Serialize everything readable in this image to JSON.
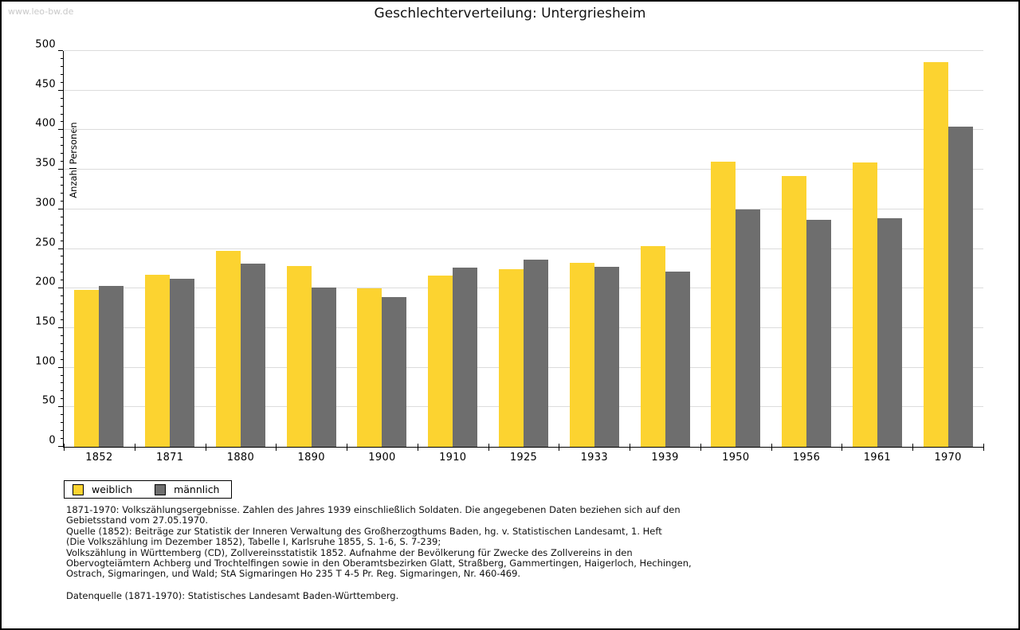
{
  "page": {
    "watermark": "www.leo-bw.de",
    "title": "Geschlechterverteilung: Untergriesheim"
  },
  "chart_data": {
    "type": "bar",
    "title": "Geschlechterverteilung: Untergriesheim",
    "xlabel": "",
    "ylabel": "Anzahl Personen",
    "ylim": [
      0,
      500
    ],
    "ytick_step": 50,
    "ytick_minor_step": 10,
    "grid": true,
    "legend_position": "bottom-left",
    "categories": [
      "1852",
      "1871",
      "1880",
      "1890",
      "1900",
      "1910",
      "1925",
      "1933",
      "1939",
      "1950",
      "1956",
      "1961",
      "1970"
    ],
    "series": [
      {
        "name": "weiblich",
        "color": "#FCD330",
        "values": [
          198,
          217,
          248,
          228,
          200,
          216,
          224,
          232,
          254,
          360,
          342,
          359,
          486
        ]
      },
      {
        "name": "männlich",
        "color": "#6E6E6E",
        "values": [
          203,
          212,
          231,
          201,
          189,
          226,
          236,
          227,
          221,
          300,
          287,
          289,
          404
        ]
      }
    ]
  },
  "legend": {
    "items": [
      {
        "label": "weiblich",
        "color": "#FCD330"
      },
      {
        "label": "männlich",
        "color": "#6E6E6E"
      }
    ]
  },
  "footnotes": {
    "lines": [
      "1871-1970: Volkszählungsergebnisse. Zahlen des Jahres 1939 einschließlich Soldaten. Die angegebenen Daten beziehen sich auf den",
      "Gebietsstand vom 27.05.1970.",
      "Quelle (1852): Beiträge zur Statistik der Inneren Verwaltung des Großherzogthums Baden, hg. v. Statistischen Landesamt, 1. Heft",
      "(Die Volkszählung im Dezember 1852), Tabelle I, Karlsruhe 1855, S. 1-6, S. 7-239;",
      "Volkszählung in Württemberg (CD), Zollvereinsstatistik 1852. Aufnahme der Bevölkerung für Zwecke des Zollvereins in den",
      "Obervogteiämtern Achberg und Trochtelfingen sowie in den Oberamtsbezirken Glatt, Straßberg, Gammertingen, Haigerloch, Hechingen,",
      "Ostrach, Sigmaringen, und Wald; StA Sigmaringen Ho 235 T 4-5 Pr. Reg. Sigmaringen, Nr. 460-469."
    ],
    "datasource": "Datenquelle (1871-1970): Statistisches Landesamt Baden-Württemberg."
  },
  "colors": {
    "female_bar": "#FCD330",
    "male_bar": "#6E6E6E",
    "gridline": "#dcdcdc",
    "axis": "#000000",
    "watermark": "#c9c9c9",
    "page_border": "#000000"
  }
}
